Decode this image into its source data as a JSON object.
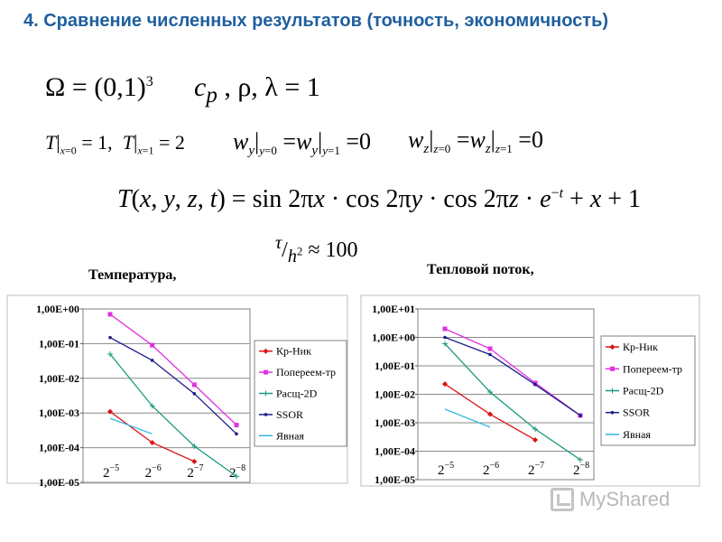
{
  "slide": {
    "title": "4. Сравнение численных результатов (точность, экономичность)",
    "formulas": {
      "domain": "Ω = (0,1)³",
      "params": "c p , ρ, λ = 1",
      "bc_t": "T|x=0 = 1,  T|x=1 = 2",
      "bc_wy": "wy|y=0 = wy|y=1 = 0",
      "bc_wz": "wz|z=0 = wz|z=1 = 0",
      "exact": "T(x, y, z, t) = sin 2πx · cos 2πy · cos 2πz · e^−t + x + 1",
      "ratio": "τ / h² ≈ 100"
    }
  },
  "watermark": {
    "text": "MyShared"
  },
  "chart_data": [
    {
      "type": "line",
      "title": "Температура,",
      "y_scale": "log",
      "ylim": [
        1e-05,
        1
      ],
      "y_ticks": [
        "1,00E+00",
        "1,00E-01",
        "1,00E-02",
        "1,00E-03",
        "1,00E-04",
        "1,00E-05"
      ],
      "categories": [
        "2^-5",
        "2^-6",
        "2^-7",
        "2^-8"
      ],
      "x_labels": [
        {
          "base": "2",
          "exp": "−5"
        },
        {
          "base": "2",
          "exp": "−6"
        },
        {
          "base": "2",
          "exp": "−7"
        },
        {
          "base": "2",
          "exp": "−8"
        }
      ],
      "grid": "horizontal",
      "legend": "right",
      "series": [
        {
          "name": "Кр-Ник",
          "color": "#dd1111",
          "marker": "diamond",
          "values": [
            0.0011,
            0.00014,
            4e-05,
            null
          ]
        },
        {
          "name": "Попереем-тр",
          "color": "#e030e0",
          "marker": "square",
          "values": [
            0.7,
            0.09,
            0.0065,
            0.00045
          ]
        },
        {
          "name": "Расщ-2D",
          "color": "#1a9a80",
          "marker": "plus",
          "values": [
            0.05,
            0.0016,
            0.00011,
            1.5e-05
          ]
        },
        {
          "name": "SSOR",
          "color": "#1c1c8c",
          "marker": "dot",
          "values": [
            0.15,
            0.033,
            0.0036,
            0.00025
          ]
        },
        {
          "name": "Явная",
          "color": "#30b8e0",
          "marker": "none",
          "values": [
            0.0007,
            0.00025,
            null,
            null
          ]
        }
      ]
    },
    {
      "type": "line",
      "title": "Тепловой поток,",
      "y_scale": "log",
      "ylim": [
        1e-05,
        10
      ],
      "y_ticks": [
        "1,00E+01",
        "1,00E+00",
        "1,00E-01",
        "1,00E-02",
        "1,00E-03",
        "1,00E-04",
        "1,00E-05"
      ],
      "categories": [
        "2^-5",
        "2^-6",
        "2^-7",
        "2^-8"
      ],
      "x_labels": [
        {
          "base": "2",
          "exp": "−5"
        },
        {
          "base": "2",
          "exp": "−6"
        },
        {
          "base": "2",
          "exp": "−7"
        },
        {
          "base": "2",
          "exp": "−8"
        }
      ],
      "grid": "horizontal",
      "legend": "right",
      "series": [
        {
          "name": "Кр-Ник",
          "color": "#dd1111",
          "marker": "diamond",
          "values": [
            0.023,
            0.002,
            0.00025,
            null
          ]
        },
        {
          "name": "Попереем-тр",
          "color": "#e030e0",
          "marker": "square",
          "values": [
            2.0,
            0.4,
            0.025,
            0.0018
          ]
        },
        {
          "name": "Расщ-2D",
          "color": "#1a9a80",
          "marker": "plus",
          "values": [
            0.6,
            0.012,
            0.0006,
            5e-05
          ]
        },
        {
          "name": "SSOR",
          "color": "#1c1c8c",
          "marker": "dot",
          "values": [
            1.0,
            0.25,
            0.022,
            0.0018
          ]
        },
        {
          "name": "Явная",
          "color": "#30b8e0",
          "marker": "none",
          "values": [
            0.003,
            0.0007,
            null,
            null
          ]
        }
      ]
    }
  ]
}
